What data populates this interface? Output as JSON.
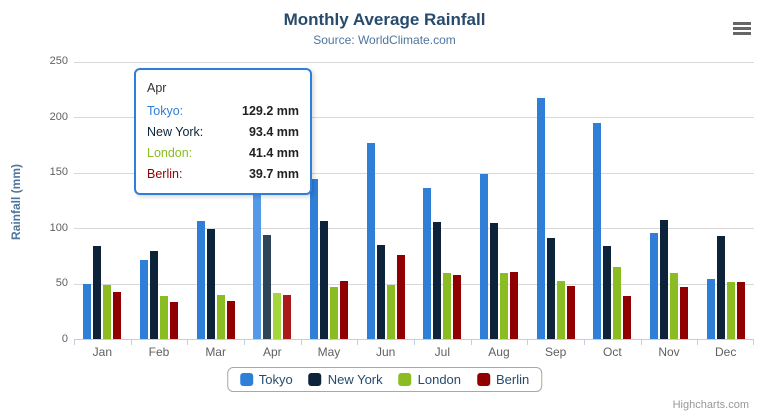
{
  "header": {
    "title": "Monthly Average Rainfall",
    "subtitle": "Source: WorldClimate.com"
  },
  "y_axis": {
    "title": "Rainfall (mm)"
  },
  "credits": {
    "label": "Highcharts.com"
  },
  "icons": {
    "context_menu": "hamburger-menu-icon"
  },
  "tooltip": {
    "header": "Apr",
    "border_color": "#2f7ed8",
    "rows": [
      {
        "label": "Tokyo:",
        "value": "129.2 mm",
        "color": "#2f7ed8"
      },
      {
        "label": "New York:",
        "value": "93.4 mm",
        "color": "#0d233a"
      },
      {
        "label": "London:",
        "value": "41.4 mm",
        "color": "#8bbc21"
      },
      {
        "label": "Berlin:",
        "value": "39.7 mm",
        "color": "#910000"
      }
    ]
  },
  "legend": {
    "items": [
      {
        "label": "Tokyo",
        "color": "#2f7ed8"
      },
      {
        "label": "New York",
        "color": "#0d233a"
      },
      {
        "label": "London",
        "color": "#8bbc21"
      },
      {
        "label": "Berlin",
        "color": "#910000"
      }
    ]
  },
  "chart_data": {
    "type": "bar",
    "title": "Monthly Average Rainfall",
    "subtitle": "Source: WorldClimate.com",
    "xlabel": "",
    "ylabel": "Rainfall (mm)",
    "ylim": [
      0,
      250
    ],
    "yticks": [
      0,
      50,
      100,
      150,
      200,
      250
    ],
    "grid": true,
    "legend_position": "bottom",
    "categories": [
      "Jan",
      "Feb",
      "Mar",
      "Apr",
      "May",
      "Jun",
      "Jul",
      "Aug",
      "Sep",
      "Oct",
      "Nov",
      "Dec"
    ],
    "hovered_category": "Apr",
    "hovered_index": 3,
    "series": [
      {
        "name": "Tokyo",
        "color": "#2f7ed8",
        "hover_color": "#549ae8",
        "values": [
          49.9,
          71.5,
          106.4,
          129.2,
          144.0,
          176.0,
          135.6,
          148.5,
          216.4,
          194.1,
          95.6,
          54.4
        ]
      },
      {
        "name": "New York",
        "color": "#0d233a",
        "hover_color": "#2e4458",
        "values": [
          83.6,
          78.8,
          98.5,
          93.4,
          106.0,
          84.5,
          105.0,
          104.3,
          91.2,
          83.5,
          106.6,
          92.3
        ]
      },
      {
        "name": "London",
        "color": "#8bbc21",
        "hover_color": "#a4d63e",
        "values": [
          48.9,
          38.8,
          39.3,
          41.4,
          47.0,
          48.3,
          59.0,
          59.6,
          52.4,
          65.2,
          59.3,
          51.2
        ]
      },
      {
        "name": "Berlin",
        "color": "#910000",
        "hover_color": "#ab1a1a",
        "values": [
          42.4,
          33.2,
          34.5,
          39.7,
          52.6,
          75.5,
          57.4,
          60.4,
          47.6,
          39.1,
          46.8,
          51.1
        ]
      }
    ]
  }
}
